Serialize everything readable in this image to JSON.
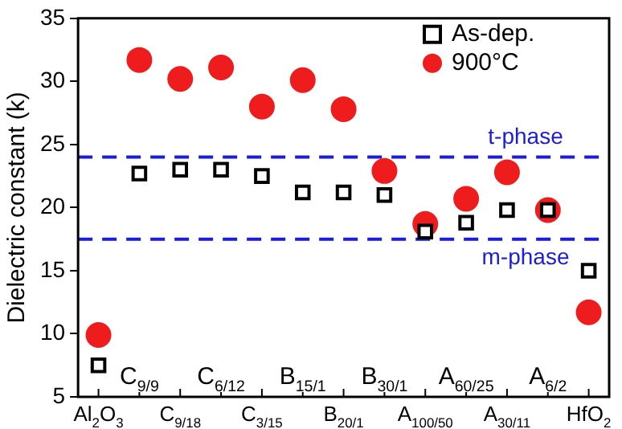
{
  "chart_data": {
    "type": "scatter",
    "ylabel": "Dielectric constant (k)",
    "categories": [
      "Al$_{2}$O$_{3}$",
      "C$_{9/9}$",
      "C$_{9/18}$",
      "C$_{6/12}$",
      "C$_{3/15}$",
      "B$_{15/1}$",
      "B$_{20/1}$",
      "B$_{30/1}$",
      "A$_{100/50}$",
      "A$_{60/25}$",
      "A$_{30/11}$",
      "A$_{6/2}$",
      "HfO$_{2}$"
    ],
    "series": [
      {
        "name": "As-dep.",
        "color": "#000000",
        "marker": "square",
        "values": [
          7.5,
          22.7,
          23.0,
          23.0,
          22.5,
          21.2,
          21.2,
          21.0,
          18.1,
          18.8,
          19.8,
          19.8,
          15.0
        ]
      },
      {
        "name": "900°C",
        "color": "#ee1c1c",
        "marker": "circle",
        "values": [
          9.9,
          31.7,
          30.2,
          31.1,
          28.0,
          30.1,
          27.8,
          22.9,
          18.7,
          20.7,
          22.8,
          19.8,
          11.7
        ]
      }
    ],
    "ylim": [
      5,
      35
    ],
    "yticks": [
      5,
      10,
      15,
      20,
      25,
      30,
      35
    ],
    "grid": false,
    "legend": "top right",
    "ref_lines": [
      {
        "axis": "y",
        "value": 24.0,
        "label": "t-phase",
        "color": "#1c1cdc",
        "line_style": "dashed"
      },
      {
        "axis": "y",
        "value": 17.5,
        "label": "m-phase",
        "color": "#1c1cdc",
        "line_style": "dashed"
      }
    ]
  }
}
